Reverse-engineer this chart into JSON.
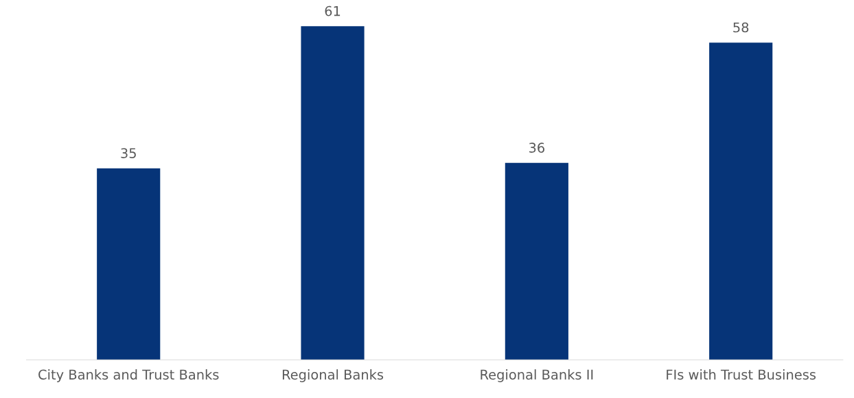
{
  "chart_data": {
    "type": "bar",
    "categories": [
      "City Banks and Trust Banks",
      "Regional Banks",
      "Regional Banks II",
      "FIs with Trust Business"
    ],
    "values": [
      35,
      61,
      36,
      58
    ],
    "color": "#063478",
    "data_labels": true,
    "grid": false,
    "legend": false,
    "tick_labels": "x"
  }
}
